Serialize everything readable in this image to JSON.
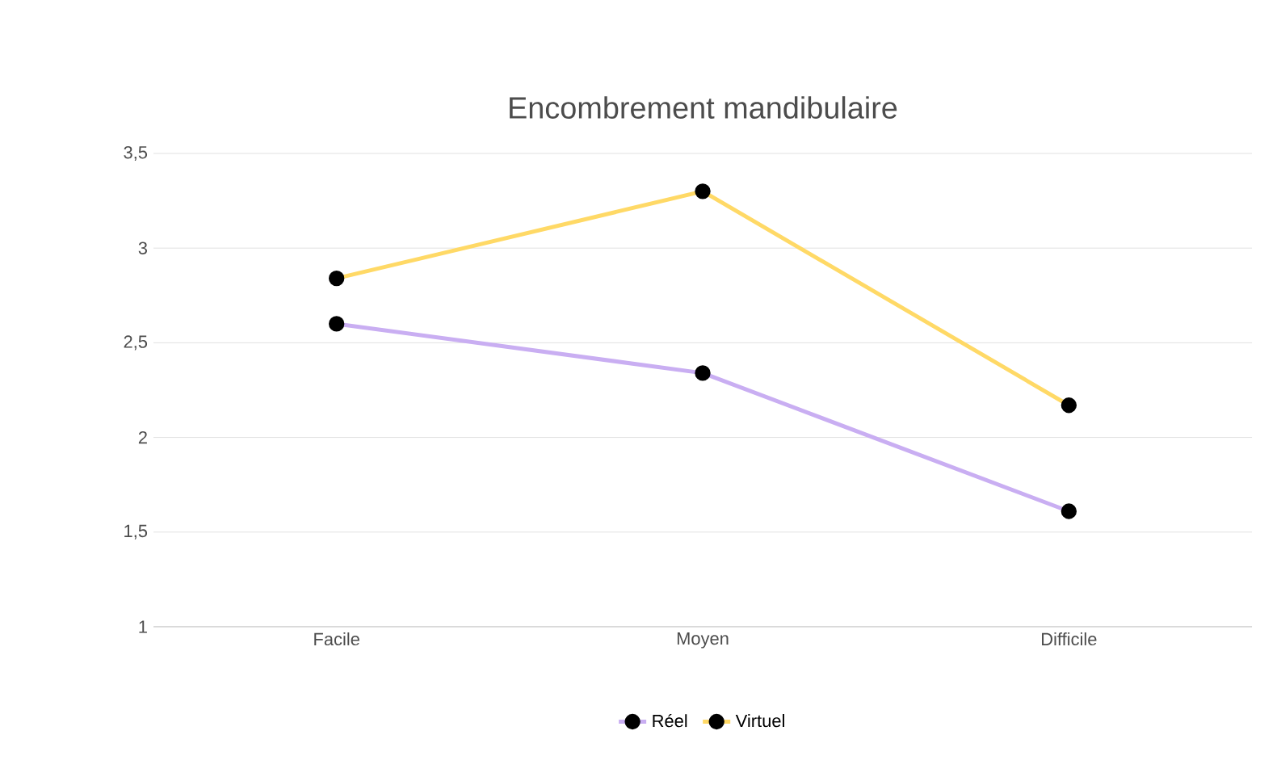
{
  "chart_data": {
    "type": "line",
    "title": "Encombrement mandibulaire",
    "categories": [
      "Facile",
      "Moyen",
      "Difficile"
    ],
    "series": [
      {
        "name": "Réel",
        "color": "#c9aef2",
        "values": [
          2.6,
          2.34,
          1.61
        ]
      },
      {
        "name": "Virtuel",
        "color": "#ffd966",
        "values": [
          2.84,
          3.3,
          2.17
        ]
      }
    ],
    "ylim": [
      1,
      3.5
    ],
    "yticks": [
      1,
      {
        "value": 1.5,
        "label": "1,5"
      },
      2,
      {
        "value": 2.5,
        "label": "2,5"
      },
      3,
      {
        "value": 3.5,
        "label": "3,5"
      }
    ],
    "grid": "y",
    "legend": "bottom",
    "marker": "circle",
    "line_style": "solid"
  }
}
